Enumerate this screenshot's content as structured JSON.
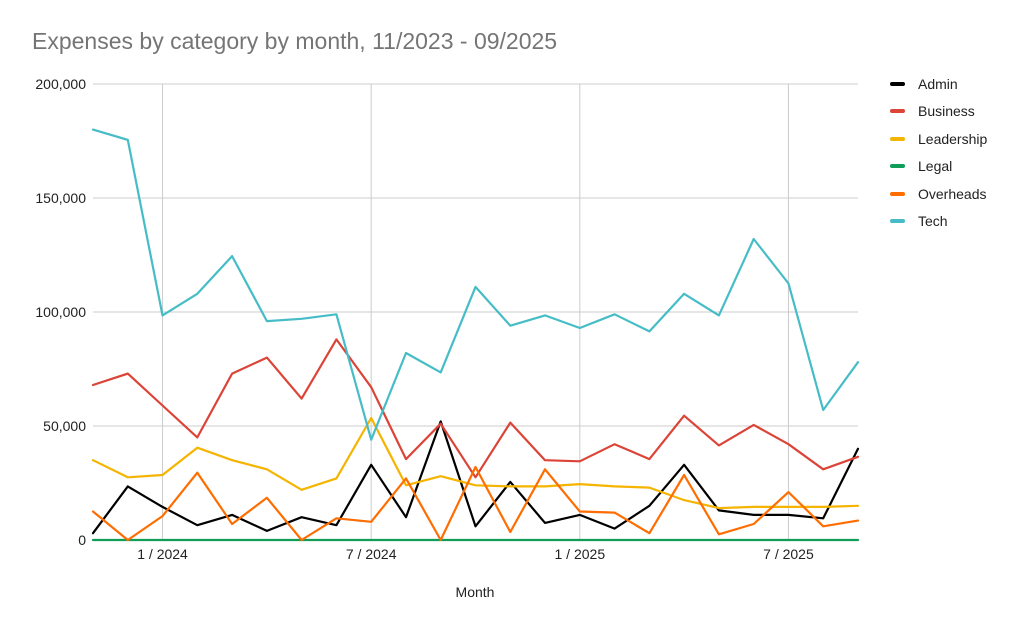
{
  "chart_data": {
    "type": "line",
    "title": "Expenses by category by month, 11/2023 - 09/2025",
    "xlabel": "Month",
    "ylabel": "",
    "ylim": [
      0,
      200000
    ],
    "y_ticks": [
      0,
      50000,
      100000,
      150000,
      200000
    ],
    "y_tick_labels": [
      "0",
      "50,000",
      "100,000",
      "150,000",
      "200,000"
    ],
    "x_tick_labels": [
      "1 / 2024",
      "7 / 2024",
      "1 / 2025",
      "7 / 2025"
    ],
    "x": [
      "2023-11",
      "2023-12",
      "2024-01",
      "2024-02",
      "2024-03",
      "2024-04",
      "2024-05",
      "2024-06",
      "2024-07",
      "2024-08",
      "2024-09",
      "2024-10",
      "2024-11",
      "2024-12",
      "2025-01",
      "2025-02",
      "2025-03",
      "2025-04",
      "2025-05",
      "2025-06",
      "2025-07",
      "2025-08",
      "2025-09"
    ],
    "grid": true,
    "legend_position": "right",
    "series": [
      {
        "name": "Admin",
        "color": "#000000",
        "values": [
          3000,
          23500,
          14500,
          6500,
          11000,
          4000,
          10000,
          6500,
          33000,
          10000,
          52000,
          6000,
          25500,
          7500,
          11000,
          5000,
          15000,
          33000,
          13000,
          11000,
          11000,
          9500,
          40000
        ]
      },
      {
        "name": "Business",
        "color": "#db4437",
        "values": [
          68000,
          73000,
          59000,
          45000,
          73000,
          80000,
          62000,
          88000,
          67000,
          35500,
          51000,
          27500,
          51500,
          35000,
          34500,
          42000,
          35500,
          54500,
          41500,
          50500,
          42000,
          31000,
          36500
        ]
      },
      {
        "name": "Leadership",
        "color": "#f4b400",
        "values": [
          35000,
          27500,
          28500,
          40500,
          35000,
          31000,
          22000,
          27000,
          53500,
          24000,
          28000,
          24000,
          23500,
          23500,
          24500,
          23500,
          23000,
          17500,
          14000,
          14500,
          14500,
          14500,
          15000
        ]
      },
      {
        "name": "Legal",
        "color": "#0f9d58",
        "values": [
          0,
          0,
          0,
          0,
          0,
          0,
          0,
          0,
          0,
          0,
          0,
          0,
          0,
          0,
          0,
          0,
          0,
          0,
          0,
          0,
          0,
          0,
          0
        ]
      },
      {
        "name": "Overheads",
        "color": "#ff6d01",
        "values": [
          12500,
          0,
          10500,
          29500,
          7000,
          18500,
          0,
          9500,
          8000,
          27000,
          0,
          32000,
          3500,
          31000,
          12500,
          12000,
          3000,
          28500,
          2500,
          7000,
          21000,
          6000,
          8500
        ]
      },
      {
        "name": "Tech",
        "color": "#46bdc6",
        "values": [
          180000,
          175500,
          98500,
          108000,
          124500,
          96000,
          97000,
          99000,
          44000,
          82000,
          73500,
          111000,
          94000,
          98500,
          93000,
          99000,
          91500,
          108000,
          98500,
          132000,
          112500,
          57000,
          78000
        ]
      }
    ]
  }
}
